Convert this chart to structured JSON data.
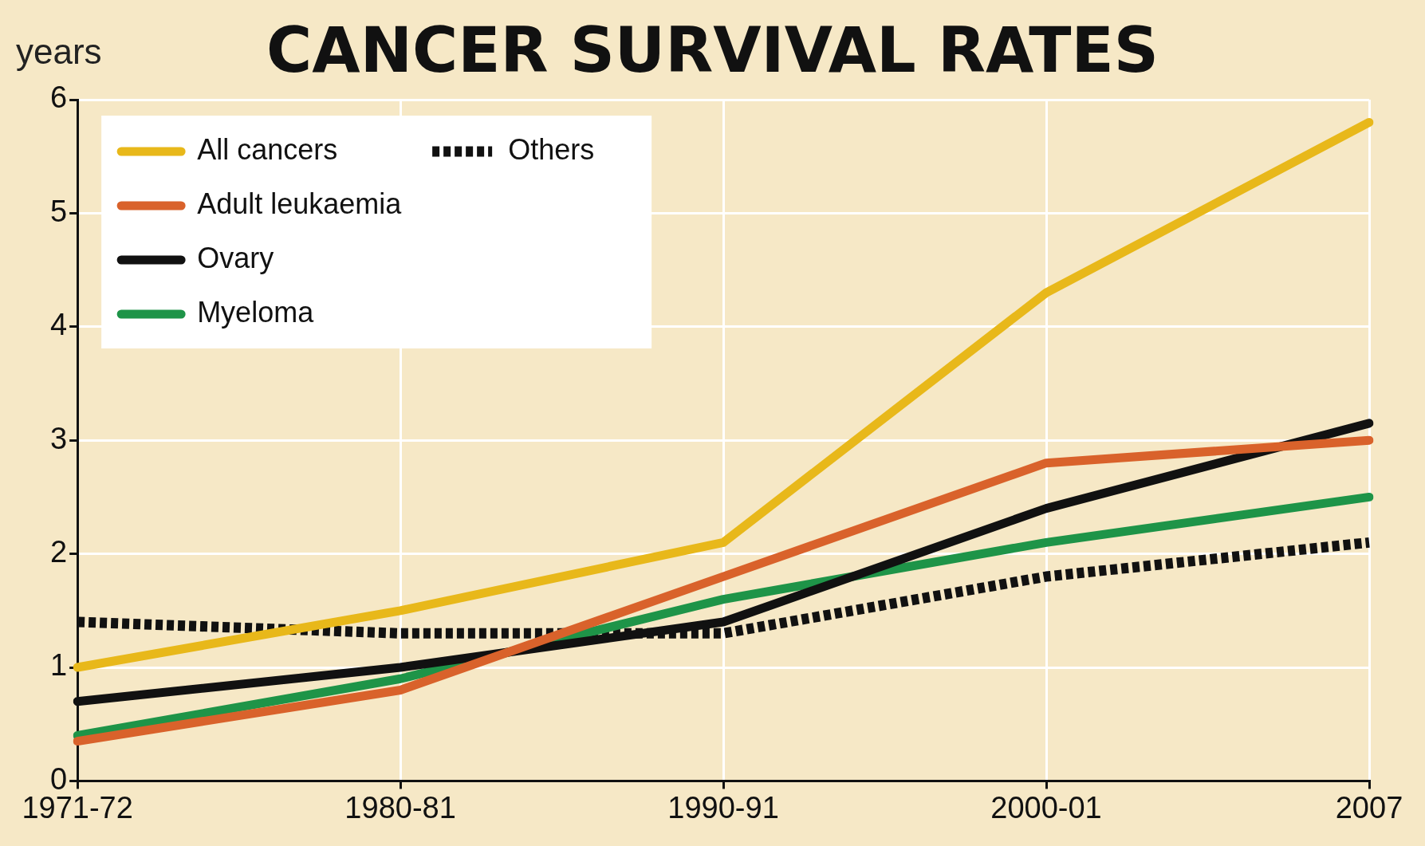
{
  "chart_data": {
    "type": "line",
    "title": "CANCER SURVIVAL RATES",
    "ylabel": "years",
    "categories": [
      "1971-72",
      "1980-81",
      "1990-91",
      "2000-01",
      "2007"
    ],
    "series": [
      {
        "name": "All cancers",
        "color": "#e8b81a",
        "values": [
          1.0,
          1.5,
          2.1,
          4.3,
          5.8
        ]
      },
      {
        "name": "Adult leukaemia",
        "color": "#d9622b",
        "values": [
          0.35,
          0.8,
          1.8,
          2.8,
          3.0
        ]
      },
      {
        "name": "Ovary",
        "color": "#111111",
        "values": [
          0.7,
          1.0,
          1.4,
          2.4,
          3.15
        ]
      },
      {
        "name": "Myeloma",
        "color": "#1e9448",
        "values": [
          0.4,
          0.9,
          1.6,
          2.1,
          2.5
        ]
      },
      {
        "name": "Others",
        "color": "#111111",
        "line_style": "dotted",
        "values": [
          1.4,
          1.3,
          1.3,
          1.8,
          2.1
        ]
      }
    ],
    "ylim": [
      0,
      6
    ],
    "yticks": [
      0,
      1,
      2,
      3,
      4,
      5,
      6
    ],
    "grid": true,
    "legend": "top left",
    "marker": "none"
  }
}
